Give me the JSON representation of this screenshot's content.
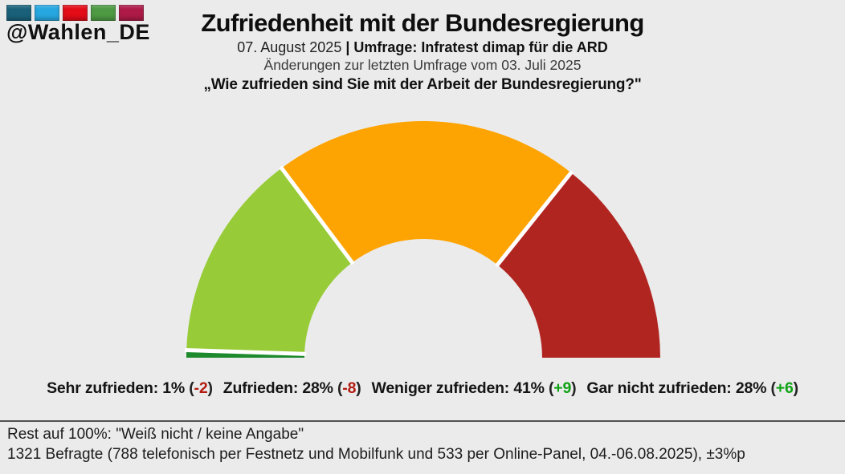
{
  "page": {
    "background_color": "#ebebeb"
  },
  "logo": {
    "handle": "@Wahlen_DE",
    "square_colors": [
      "#19617a",
      "#27a7e0",
      "#e30c17",
      "#4e9a43",
      "#ae1a47"
    ]
  },
  "header": {
    "title": "Zufriedenheit mit der Bundesregierung",
    "date": "07. August 2025",
    "source": "| Umfrage: Infratest dimap für die ARD",
    "changes_note": "Änderungen zur letzten Umfrage vom 03. Juli 2025",
    "question": "„Wie zufrieden sind Sie mit der Arbeit der Bundesregierung?\""
  },
  "chart_data": {
    "type": "pie",
    "subtype": "half-donut-gauge",
    "title": "Zufriedenheit mit der Bundesregierung",
    "categories": [
      "Sehr zufrieden",
      "Zufrieden",
      "Weniger zufrieden",
      "Gar nicht zufrieden"
    ],
    "values": [
      1,
      28,
      41,
      28
    ],
    "unit": "%",
    "changes_vs_previous": [
      -2,
      -8,
      9,
      6
    ],
    "colors": [
      "#1d8b2d",
      "#97cb37",
      "#fda403",
      "#b12521"
    ],
    "layout": {
      "start_angle_deg": 180,
      "end_angle_deg": 0,
      "inner_radius_ratio": 0.5,
      "separator_color": "#ffffff",
      "segments_normalized_to_shown_sum": true,
      "legend_position": "bottom"
    }
  },
  "legend": {
    "items": [
      {
        "label": "Sehr zufrieden",
        "value": "1%",
        "change": "-2",
        "trend": "negative"
      },
      {
        "label": "Zufrieden",
        "value": "28%",
        "change": "-8",
        "trend": "negative"
      },
      {
        "label": "Weniger zufrieden",
        "value": "41%",
        "change": "+9",
        "trend": "positive"
      },
      {
        "label": "Gar nicht zufrieden",
        "value": "28%",
        "change": "+6",
        "trend": "positive"
      }
    ],
    "negative_color": "#b11b10",
    "positive_color": "#0fa314"
  },
  "footer": {
    "line1": "Rest auf 100%: \"Weiß nicht / keine Angabe\"",
    "line2": "1321 Befragte (788 telefonisch per Festnetz und Mobilfunk und 533 per Online-Panel, 04.-06.08.2025), ±3%p"
  }
}
